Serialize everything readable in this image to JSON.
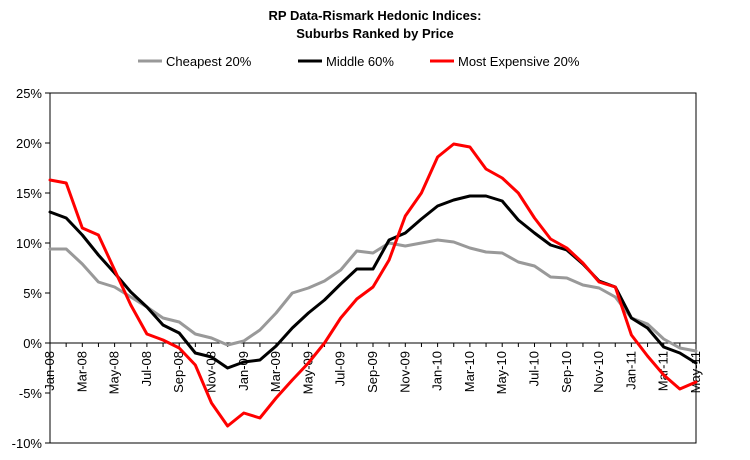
{
  "chart_data": {
    "type": "line",
    "title": "RP Data-Rismark Hedonic Indices:",
    "subtitle": "Suburbs Ranked by Price",
    "xlabel": "",
    "ylabel": "",
    "ylim": [
      -10,
      25
    ],
    "yticks": [
      "25%",
      "20%",
      "15%",
      "10%",
      "5%",
      "0%",
      "-5%",
      "-10%"
    ],
    "ytick_values": [
      25,
      20,
      15,
      10,
      5,
      0,
      -5,
      -10
    ],
    "x": [
      "Jan-08",
      "Feb-08",
      "Mar-08",
      "Apr-08",
      "May-08",
      "Jun-08",
      "Jul-08",
      "Aug-08",
      "Sep-08",
      "Oct-08",
      "Nov-08",
      "Dec-08",
      "Jan-09",
      "Feb-09",
      "Mar-09",
      "Apr-09",
      "May-09",
      "Jun-09",
      "Jul-09",
      "Aug-09",
      "Sep-09",
      "Oct-09",
      "Nov-09",
      "Dec-09",
      "Jan-10",
      "Feb-10",
      "Mar-10",
      "Apr-10",
      "May-10",
      "Jun-10",
      "Jul-10",
      "Aug-10",
      "Sep-10",
      "Oct-10",
      "Nov-10",
      "Dec-10",
      "Jan-11",
      "Feb-11",
      "Mar-11",
      "Apr-11",
      "May-11"
    ],
    "xtick_labels": [
      "Jan-08",
      "Mar-08",
      "May-08",
      "Jul-08",
      "Sep-08",
      "Nov-08",
      "Jan-09",
      "Mar-09",
      "May-09",
      "Jul-09",
      "Sep-09",
      "Nov-09",
      "Jan-10",
      "Mar-10",
      "May-10",
      "Jul-10",
      "Sep-10",
      "Nov-10",
      "Jan-11",
      "Mar-11",
      "May-11"
    ],
    "legend_position": "top",
    "grid": false,
    "series": [
      {
        "name": "Cheapest 20%",
        "color": "#999999",
        "values": [
          9.4,
          9.4,
          7.9,
          6.1,
          5.6,
          4.6,
          3.6,
          2.5,
          2.1,
          0.9,
          0.5,
          -0.2,
          0.2,
          1.3,
          3.0,
          5.0,
          5.5,
          6.2,
          7.3,
          9.2,
          9.0,
          10.0,
          9.7,
          10.0,
          10.3,
          10.1,
          9.5,
          9.1,
          9.0,
          8.1,
          7.7,
          6.6,
          6.5,
          5.8,
          5.5,
          4.6,
          2.5,
          1.9,
          0.4,
          -0.5,
          -0.8
        ]
      },
      {
        "name": "Middle 60%",
        "color": "#000000",
        "values": [
          13.1,
          12.5,
          10.8,
          8.8,
          7.0,
          5.1,
          3.6,
          1.8,
          1.0,
          -1.0,
          -1.4,
          -2.5,
          -1.9,
          -1.7,
          -0.3,
          1.5,
          3.0,
          4.3,
          5.9,
          7.4,
          7.4,
          10.3,
          11.0,
          12.4,
          13.7,
          14.3,
          14.7,
          14.7,
          14.2,
          12.3,
          11.0,
          9.8,
          9.3,
          7.9,
          6.2,
          5.6,
          2.5,
          1.5,
          -0.4,
          -1.0,
          -2.0
        ]
      },
      {
        "name": "Most Expensive 20%",
        "color": "#ff0000",
        "values": [
          16.3,
          16.0,
          11.5,
          10.8,
          7.3,
          3.8,
          0.9,
          0.3,
          -0.5,
          -2.2,
          -6.0,
          -8.3,
          -7.0,
          -7.5,
          -5.5,
          -3.7,
          -2.0,
          0.0,
          2.5,
          4.4,
          5.6,
          8.3,
          12.7,
          15.0,
          18.6,
          19.9,
          19.6,
          17.4,
          16.5,
          15.0,
          12.5,
          10.4,
          9.5,
          8.0,
          6.1,
          5.6,
          0.8,
          -1.3,
          -3.2,
          -4.6,
          -3.9
        ]
      }
    ]
  }
}
